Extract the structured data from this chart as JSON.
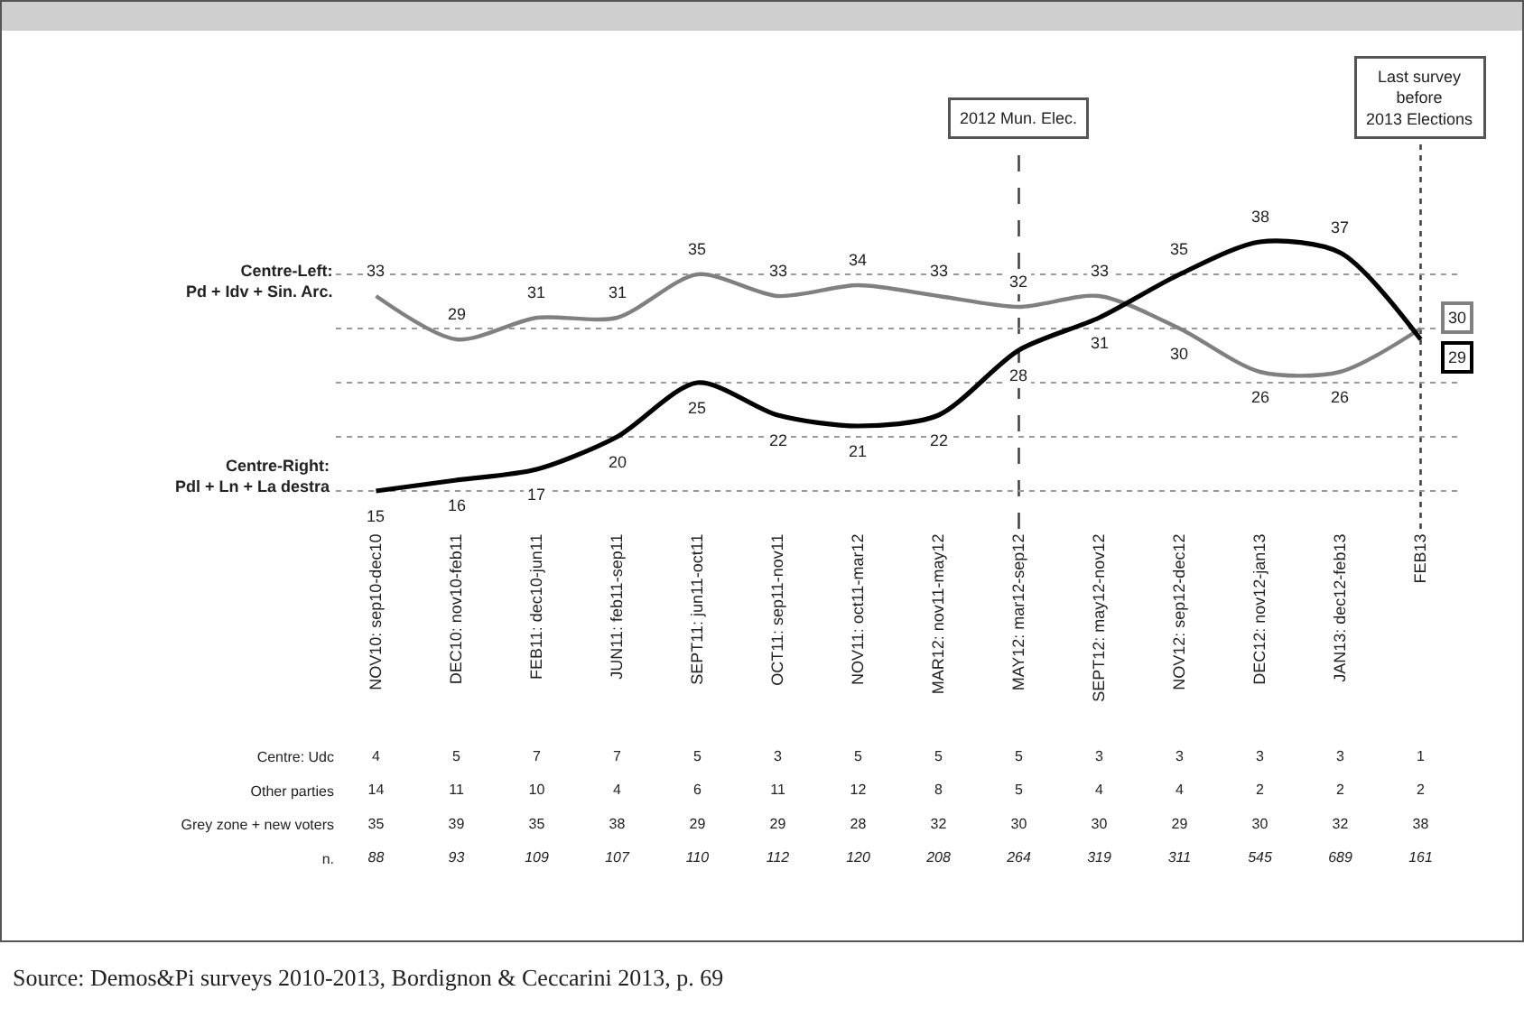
{
  "chart_data": [
    {
      "type": "line",
      "categories": [
        "NOV10: sep10-dec10",
        "DEC10: nov10-feb11",
        "FEB11: dec10-jun11",
        "JUN11: feb11-sep11",
        "SEPT11: jun11-oct11",
        "OCT11: sep11-nov11",
        "NOV11: oct11-mar12",
        "MAR12: nov11-may12",
        "MAY12: mar12-sep12",
        "SEPT12: may12-nov12",
        "NOV12: sep12-dec12",
        "DEC12: nov12-jan13",
        "JAN13: dec12-feb13",
        "FEB13"
      ],
      "series": [
        {
          "name": "Centre-Left:\nPd + Idv + Sin. Arc.",
          "color": "#808080",
          "values": [
            33,
            29,
            31,
            31,
            35,
            33,
            34,
            33,
            32,
            33,
            30,
            26,
            26,
            30
          ]
        },
        {
          "name": "Centre-Right:\nPdl + Ln + La destra",
          "color": "#000000",
          "values": [
            15,
            16,
            17,
            20,
            25,
            22,
            21,
            22,
            28,
            31,
            35,
            38,
            37,
            29
          ]
        }
      ],
      "yticks": [
        {
          "value": 15,
          "label": null
        },
        {
          "value": 20,
          "label": null
        },
        {
          "value": 25,
          "label": null
        },
        {
          "value": 30,
          "label": null
        },
        {
          "value": 35,
          "label": null
        }
      ],
      "grid": "y",
      "legend": false,
      "marker": "none",
      "line_style": "solid",
      "data_labels": true,
      "tick_labels": "x",
      "ref_lines": [
        {
          "axis": "x",
          "value": "MAY12: mar12-sep12",
          "label": "2012 Mun. Elec.",
          "line_style": "dashed"
        },
        {
          "axis": "x",
          "value": "FEB13",
          "label": "Last survey\nbefore\n2013 Elections",
          "line_style": "dotted"
        }
      ]
    },
    {
      "type": "heatmap",
      "categories": [
        null,
        null,
        null,
        null,
        null,
        null,
        null,
        null,
        null,
        null,
        null,
        null,
        null,
        null
      ],
      "y_categories": [
        "Centre: Udc",
        "Other parties",
        "Grey zone + new voters",
        "n."
      ],
      "cells": [
        [
          4,
          5,
          7,
          7,
          5,
          3,
          5,
          5,
          5,
          3,
          3,
          3,
          3,
          1
        ],
        [
          14,
          11,
          10,
          4,
          6,
          11,
          12,
          8,
          5,
          4,
          4,
          2,
          2,
          2
        ],
        [
          35,
          39,
          35,
          38,
          29,
          29,
          28,
          32,
          30,
          30,
          29,
          30,
          32,
          38
        ],
        [
          88,
          93,
          109,
          107,
          110,
          112,
          120,
          208,
          264,
          319,
          311,
          545,
          689,
          161
        ]
      ],
      "data_labels": true,
      "annotations": [
        "Source: Demos&Pi surveys 2010-2013, Bordignon & Ceccarini 2013, p. 69"
      ]
    }
  ]
}
